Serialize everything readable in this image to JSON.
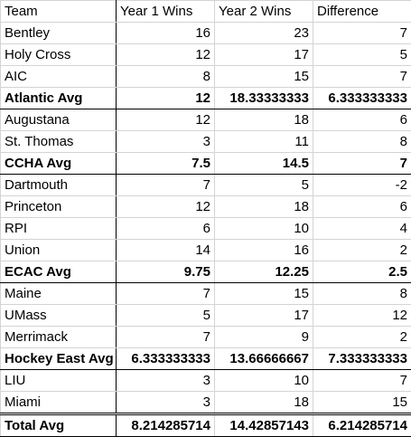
{
  "table": {
    "header": [
      "Team",
      "Year 1 Wins",
      "Year 2 Wins",
      "Difference"
    ],
    "groups": [
      {
        "rows": [
          [
            "Bentley",
            "16",
            "23",
            "7"
          ],
          [
            "Holy Cross",
            "12",
            "17",
            "5"
          ],
          [
            "AIC",
            "8",
            "15",
            "7"
          ]
        ],
        "avg": [
          "Atlantic Avg",
          "12",
          "18.33333333",
          "6.333333333"
        ]
      },
      {
        "rows": [
          [
            "Augustana",
            "12",
            "18",
            "6"
          ],
          [
            "St. Thomas",
            "3",
            "11",
            "8"
          ]
        ],
        "avg": [
          "CCHA Avg",
          "7.5",
          "14.5",
          "7"
        ]
      },
      {
        "rows": [
          [
            "Dartmouth",
            "7",
            "5",
            "-2"
          ],
          [
            "Princeton",
            "12",
            "18",
            "6"
          ],
          [
            "RPI",
            "6",
            "10",
            "4"
          ],
          [
            "Union",
            "14",
            "16",
            "2"
          ]
        ],
        "avg": [
          "ECAC Avg",
          "9.75",
          "12.25",
          "2.5"
        ]
      },
      {
        "rows": [
          [
            "Maine",
            "7",
            "15",
            "8"
          ],
          [
            "UMass",
            "5",
            "17",
            "12"
          ],
          [
            "Merrimack",
            "7",
            "9",
            "2"
          ]
        ],
        "avg": [
          "Hockey East Avg",
          "6.333333333",
          "13.66666667",
          "7.333333333"
        ]
      },
      {
        "rows": [
          [
            "LIU",
            "3",
            "10",
            "7"
          ],
          [
            "Miami",
            "3",
            "18",
            "15"
          ]
        ]
      }
    ],
    "total": [
      "Total Avg",
      "8.214285714",
      "14.42857143",
      "6.214285714"
    ]
  }
}
